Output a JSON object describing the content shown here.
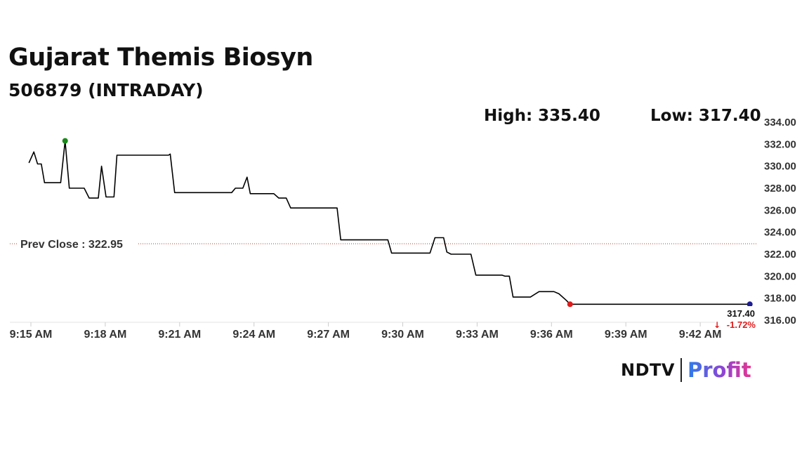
{
  "header": {
    "title": "Gujarat Themis Biosyn",
    "subtitle": "506879 (INTRADAY)",
    "high_text": "High: 335.40",
    "low_text": "Low: 317.40"
  },
  "brand": {
    "left": "NDTV",
    "right": "Profit"
  },
  "chart_data": {
    "type": "line",
    "x_start": "9:15 AM",
    "ylim": [
      316,
      334
    ],
    "y_ticks": [
      334,
      332,
      330,
      328,
      326,
      324,
      322,
      320,
      318,
      316
    ],
    "y_tick_labels": [
      "334.00",
      "332.00",
      "330.00",
      "328.00",
      "326.00",
      "324.00",
      "322.00",
      "320.00",
      "318.00",
      "316.00"
    ],
    "x_ticks": [
      "9:15 AM",
      "9:18 AM",
      "9:21 AM",
      "9:24 AM",
      "9:27 AM",
      "9:30 AM",
      "9:33 AM",
      "9:36 AM",
      "9:39 AM",
      "9:42 AM"
    ],
    "x_tick_minutes": [
      0,
      3,
      6,
      9,
      12,
      15,
      18,
      21,
      24,
      27
    ],
    "prev_close": 322.95,
    "prev_close_label": "Prev Close : 322.95",
    "last_value_label": "317.40",
    "change_label": "-1.72%",
    "series": [
      {
        "values": [
          [
            -0.08,
            330.3
          ],
          [
            0.12,
            331.3
          ],
          [
            0.27,
            330.2
          ],
          [
            0.42,
            330.2
          ],
          [
            0.55,
            328.5
          ],
          [
            1.2,
            328.5
          ],
          [
            1.38,
            332.3
          ],
          [
            1.55,
            328.0
          ],
          [
            2.15,
            328.0
          ],
          [
            2.35,
            327.1
          ],
          [
            2.72,
            327.1
          ],
          [
            2.85,
            330.0
          ],
          [
            3.03,
            327.2
          ],
          [
            3.35,
            327.2
          ],
          [
            3.47,
            331.0
          ],
          [
            5.55,
            331.0
          ],
          [
            5.62,
            331.1
          ],
          [
            5.8,
            327.6
          ],
          [
            8.1,
            327.6
          ],
          [
            8.25,
            328.0
          ],
          [
            8.55,
            328.0
          ],
          [
            8.72,
            329.0
          ],
          [
            8.85,
            327.5
          ],
          [
            9.8,
            327.5
          ],
          [
            10.0,
            327.1
          ],
          [
            10.3,
            327.1
          ],
          [
            10.48,
            326.2
          ],
          [
            12.35,
            326.2
          ],
          [
            12.5,
            323.3
          ],
          [
            14.4,
            323.3
          ],
          [
            14.55,
            322.1
          ],
          [
            16.1,
            322.1
          ],
          [
            16.3,
            323.5
          ],
          [
            16.65,
            323.5
          ],
          [
            16.78,
            322.2
          ],
          [
            16.95,
            322.0
          ],
          [
            17.75,
            322.0
          ],
          [
            17.95,
            320.1
          ],
          [
            19.0,
            320.1
          ],
          [
            19.12,
            320.0
          ],
          [
            19.3,
            320.0
          ],
          [
            19.45,
            318.1
          ],
          [
            20.15,
            318.1
          ],
          [
            20.5,
            318.6
          ],
          [
            21.1,
            318.6
          ],
          [
            21.3,
            318.4
          ],
          [
            21.6,
            317.8
          ],
          [
            21.75,
            317.45
          ],
          [
            29.0,
            317.45
          ]
        ]
      }
    ],
    "markers": [
      {
        "t": 1.38,
        "v": 332.3,
        "color": "#1a8a1a"
      },
      {
        "t": 21.75,
        "v": 317.45,
        "color": "#e01b1b"
      },
      {
        "t": 29.0,
        "v": 317.45,
        "color": "#1d1d8f"
      }
    ],
    "line_color": "#000000",
    "prev_close_color": "#c0392b",
    "change_color": "#e01b1b",
    "grid": false
  }
}
